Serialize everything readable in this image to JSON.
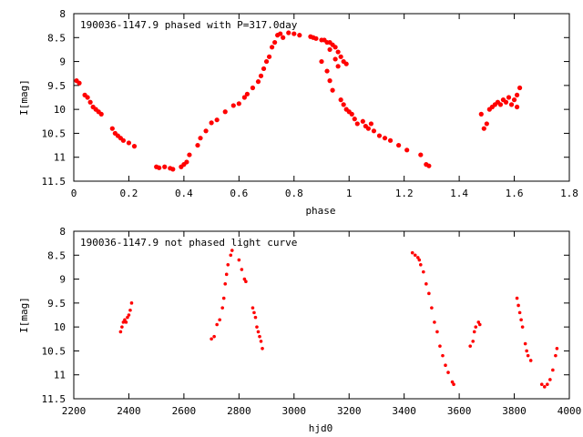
{
  "chart_data": [
    {
      "type": "scatter",
      "title": "190036-1147.9 phased with P=317.0day",
      "xlabel": "phase",
      "ylabel": "I[mag]",
      "xlim": [
        0,
        1.8
      ],
      "ylim": [
        8,
        11.5
      ],
      "y_inverted": true,
      "xticks": [
        0,
        0.2,
        0.4,
        0.6,
        0.8,
        1,
        1.2,
        1.4,
        1.6,
        1.8
      ],
      "xtick_labels": [
        "0",
        "0.2",
        "0.4",
        "0.6",
        "0.8",
        "1",
        "1.2",
        "1.4",
        "1.6",
        "1.8"
      ],
      "yticks": [
        8,
        8.5,
        9,
        9.5,
        10,
        10.5,
        11,
        11.5
      ],
      "ytick_labels": [
        "8",
        "8.5",
        "9",
        "9.5",
        "10",
        "10.5",
        "11",
        "11.5"
      ],
      "grid": false,
      "marker_color": "#ff0000",
      "series": [
        {
          "points": [
            [
              0.01,
              9.4
            ],
            [
              0.02,
              9.45
            ],
            [
              0.04,
              9.7
            ],
            [
              0.05,
              9.75
            ],
            [
              0.06,
              9.85
            ],
            [
              0.07,
              9.95
            ],
            [
              0.08,
              10.0
            ],
            [
              0.09,
              10.05
            ],
            [
              0.1,
              10.1
            ],
            [
              0.14,
              10.4
            ],
            [
              0.15,
              10.5
            ],
            [
              0.16,
              10.55
            ],
            [
              0.17,
              10.6
            ],
            [
              0.18,
              10.65
            ],
            [
              0.2,
              10.7
            ],
            [
              0.22,
              10.77
            ],
            [
              0.3,
              11.2
            ],
            [
              0.31,
              11.22
            ],
            [
              0.33,
              11.2
            ],
            [
              0.35,
              11.23
            ],
            [
              0.36,
              11.25
            ],
            [
              0.39,
              11.2
            ],
            [
              0.4,
              11.15
            ],
            [
              0.41,
              11.1
            ],
            [
              0.42,
              10.95
            ],
            [
              0.45,
              10.75
            ],
            [
              0.46,
              10.6
            ],
            [
              0.48,
              10.45
            ],
            [
              0.5,
              10.28
            ],
            [
              0.52,
              10.22
            ],
            [
              0.55,
              10.05
            ],
            [
              0.58,
              9.92
            ],
            [
              0.6,
              9.88
            ],
            [
              0.62,
              9.75
            ],
            [
              0.63,
              9.68
            ],
            [
              0.65,
              9.55
            ],
            [
              0.67,
              9.42
            ],
            [
              0.68,
              9.3
            ],
            [
              0.69,
              9.15
            ],
            [
              0.7,
              9.0
            ],
            [
              0.71,
              8.9
            ],
            [
              0.72,
              8.7
            ],
            [
              0.73,
              8.6
            ],
            [
              0.74,
              8.45
            ],
            [
              0.75,
              8.42
            ],
            [
              0.76,
              8.5
            ],
            [
              0.78,
              8.4
            ],
            [
              0.8,
              8.42
            ],
            [
              0.82,
              8.45
            ],
            [
              0.86,
              8.48
            ],
            [
              0.87,
              8.5
            ],
            [
              0.88,
              8.52
            ],
            [
              0.9,
              8.55
            ],
            [
              0.91,
              8.55
            ],
            [
              0.92,
              8.6
            ],
            [
              0.93,
              8.6
            ],
            [
              0.94,
              8.65
            ],
            [
              0.95,
              8.7
            ],
            [
              0.96,
              8.8
            ],
            [
              0.97,
              8.9
            ],
            [
              0.98,
              9.0
            ],
            [
              0.99,
              9.05
            ],
            [
              0.96,
              9.1
            ],
            [
              0.95,
              8.95
            ],
            [
              0.93,
              8.75
            ],
            [
              0.9,
              9.0
            ],
            [
              0.92,
              9.2
            ],
            [
              0.93,
              9.4
            ],
            [
              0.94,
              9.6
            ],
            [
              0.97,
              9.8
            ],
            [
              0.98,
              9.9
            ],
            [
              0.99,
              10.0
            ],
            [
              1.0,
              10.05
            ],
            [
              1.01,
              10.1
            ],
            [
              1.02,
              10.2
            ],
            [
              1.03,
              10.3
            ],
            [
              1.05,
              10.25
            ],
            [
              1.06,
              10.35
            ],
            [
              1.07,
              10.4
            ],
            [
              1.08,
              10.3
            ],
            [
              1.09,
              10.45
            ],
            [
              1.11,
              10.55
            ],
            [
              1.13,
              10.6
            ],
            [
              1.15,
              10.65
            ],
            [
              1.18,
              10.75
            ],
            [
              1.21,
              10.85
            ],
            [
              1.26,
              10.95
            ],
            [
              1.28,
              11.15
            ],
            [
              1.29,
              11.18
            ],
            [
              1.48,
              10.1
            ],
            [
              1.49,
              10.4
            ],
            [
              1.5,
              10.3
            ],
            [
              1.51,
              10.0
            ],
            [
              1.52,
              9.95
            ],
            [
              1.53,
              9.9
            ],
            [
              1.54,
              9.85
            ],
            [
              1.55,
              9.9
            ],
            [
              1.56,
              9.8
            ],
            [
              1.57,
              9.85
            ],
            [
              1.58,
              9.75
            ],
            [
              1.59,
              9.9
            ],
            [
              1.6,
              9.8
            ],
            [
              1.61,
              9.7
            ],
            [
              1.62,
              9.55
            ],
            [
              1.61,
              9.95
            ]
          ]
        }
      ]
    },
    {
      "type": "scatter",
      "title": "190036-1147.9 not phased light curve",
      "xlabel": "hjd0",
      "ylabel": "I[mag]",
      "xlim": [
        2200,
        4000
      ],
      "ylim": [
        8,
        11.5
      ],
      "y_inverted": true,
      "xticks": [
        2200,
        2400,
        2600,
        2800,
        3000,
        3200,
        3400,
        3600,
        3800,
        4000
      ],
      "xtick_labels": [
        "2200",
        "2400",
        "2600",
        "2800",
        "3000",
        "3200",
        "3400",
        "3600",
        "3800",
        "4000"
      ],
      "yticks": [
        8,
        8.5,
        9,
        9.5,
        10,
        10.5,
        11,
        11.5
      ],
      "ytick_labels": [
        "8",
        "8.5",
        "9",
        "9.5",
        "10",
        "10.5",
        "11",
        "11.5"
      ],
      "grid": false,
      "marker_color": "#ff0000",
      "series": [
        {
          "points": [
            [
              2370,
              10.1
            ],
            [
              2375,
              10.0
            ],
            [
              2380,
              9.9
            ],
            [
              2385,
              9.85
            ],
            [
              2390,
              9.9
            ],
            [
              2395,
              9.8
            ],
            [
              2400,
              9.75
            ],
            [
              2405,
              9.65
            ],
            [
              2410,
              9.5
            ],
            [
              2700,
              10.25
            ],
            [
              2710,
              10.2
            ],
            [
              2720,
              9.95
            ],
            [
              2730,
              9.85
            ],
            [
              2740,
              9.6
            ],
            [
              2745,
              9.4
            ],
            [
              2750,
              9.1
            ],
            [
              2755,
              8.9
            ],
            [
              2760,
              8.7
            ],
            [
              2770,
              8.5
            ],
            [
              2775,
              8.4
            ],
            [
              2800,
              8.6
            ],
            [
              2810,
              8.8
            ],
            [
              2820,
              9.0
            ],
            [
              2825,
              9.05
            ],
            [
              2850,
              9.6
            ],
            [
              2855,
              9.7
            ],
            [
              2860,
              9.8
            ],
            [
              2865,
              10.0
            ],
            [
              2870,
              10.1
            ],
            [
              2875,
              10.2
            ],
            [
              2880,
              10.3
            ],
            [
              2885,
              10.45
            ],
            [
              3430,
              8.45
            ],
            [
              3440,
              8.5
            ],
            [
              3450,
              8.55
            ],
            [
              3455,
              8.6
            ],
            [
              3460,
              8.7
            ],
            [
              3470,
              8.85
            ],
            [
              3480,
              9.1
            ],
            [
              3490,
              9.3
            ],
            [
              3500,
              9.6
            ],
            [
              3510,
              9.9
            ],
            [
              3520,
              10.1
            ],
            [
              3530,
              10.4
            ],
            [
              3540,
              10.6
            ],
            [
              3550,
              10.8
            ],
            [
              3560,
              10.95
            ],
            [
              3575,
              11.15
            ],
            [
              3580,
              11.2
            ],
            [
              3640,
              10.4
            ],
            [
              3650,
              10.3
            ],
            [
              3655,
              10.1
            ],
            [
              3660,
              10.0
            ],
            [
              3670,
              9.9
            ],
            [
              3675,
              9.95
            ],
            [
              3810,
              9.4
            ],
            [
              3815,
              9.55
            ],
            [
              3820,
              9.7
            ],
            [
              3825,
              9.85
            ],
            [
              3830,
              10.0
            ],
            [
              3840,
              10.35
            ],
            [
              3845,
              10.5
            ],
            [
              3850,
              10.6
            ],
            [
              3860,
              10.7
            ],
            [
              3900,
              11.2
            ],
            [
              3910,
              11.25
            ],
            [
              3920,
              11.2
            ],
            [
              3930,
              11.1
            ],
            [
              3940,
              10.9
            ],
            [
              3950,
              10.6
            ],
            [
              3955,
              10.45
            ]
          ]
        }
      ]
    }
  ]
}
